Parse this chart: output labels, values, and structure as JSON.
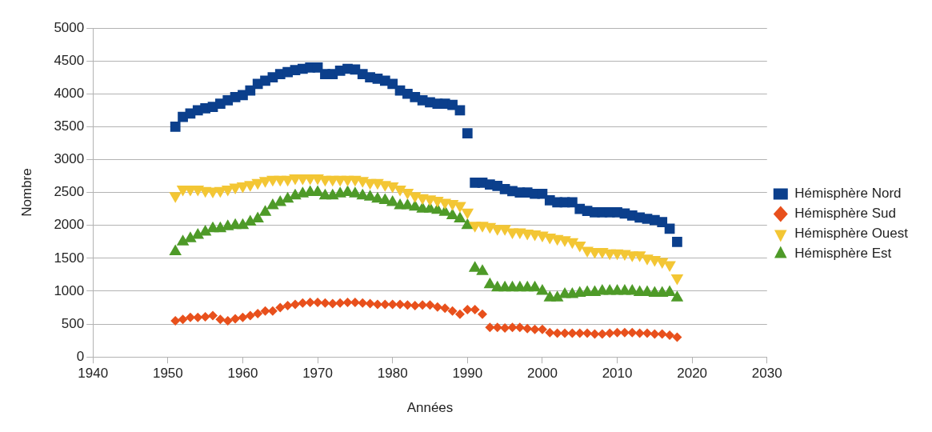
{
  "chart_data": {
    "type": "scatter",
    "xlabel": "Années",
    "ylabel": "Nombre",
    "x": [
      1951,
      1952,
      1953,
      1954,
      1955,
      1956,
      1957,
      1958,
      1959,
      1960,
      1961,
      1962,
      1963,
      1964,
      1965,
      1966,
      1967,
      1968,
      1969,
      1970,
      1971,
      1972,
      1973,
      1974,
      1975,
      1976,
      1977,
      1978,
      1979,
      1980,
      1981,
      1982,
      1983,
      1984,
      1985,
      1986,
      1987,
      1988,
      1989,
      1990,
      1991,
      1992,
      1993,
      1994,
      1995,
      1996,
      1997,
      1998,
      1999,
      2000,
      2001,
      2002,
      2003,
      2004,
      2005,
      2006,
      2007,
      2008,
      2009,
      2010,
      2011,
      2012,
      2013,
      2014,
      2015,
      2016,
      2017,
      2018
    ],
    "series": [
      {
        "name": "Hémisphère Nord",
        "color": "#0b3f8c",
        "marker": "square",
        "values": [
          3500,
          3650,
          3700,
          3750,
          3780,
          3800,
          3850,
          3900,
          3950,
          3980,
          4050,
          4150,
          4200,
          4250,
          4300,
          4330,
          4360,
          4380,
          4400,
          4400,
          4300,
          4300,
          4350,
          4380,
          4370,
          4300,
          4250,
          4230,
          4200,
          4150,
          4050,
          4000,
          3950,
          3900,
          3870,
          3850,
          3850,
          3830,
          3750,
          3400,
          2650,
          2650,
          2620,
          2600,
          2550,
          2520,
          2500,
          2500,
          2480,
          2480,
          2380,
          2350,
          2350,
          2350,
          2250,
          2220,
          2200,
          2200,
          2200,
          2200,
          2180,
          2150,
          2120,
          2100,
          2080,
          2050,
          1950,
          1750
        ]
      },
      {
        "name": "Hémisphère Sud",
        "color": "#e8501c",
        "marker": "diamond",
        "values": [
          550,
          570,
          600,
          600,
          610,
          630,
          570,
          550,
          580,
          600,
          630,
          660,
          700,
          700,
          750,
          780,
          800,
          820,
          830,
          830,
          820,
          810,
          820,
          830,
          830,
          820,
          810,
          800,
          800,
          800,
          800,
          790,
          780,
          790,
          790,
          760,
          740,
          700,
          650,
          720,
          720,
          650,
          450,
          450,
          440,
          450,
          450,
          430,
          420,
          420,
          370,
          360,
          360,
          360,
          360,
          360,
          350,
          350,
          360,
          370,
          370,
          370,
          360,
          360,
          350,
          350,
          330,
          300
        ]
      },
      {
        "name": "Hémisphère Ouest",
        "color": "#f3c634",
        "marker": "triangle-down",
        "values": [
          2450,
          2550,
          2550,
          2550,
          2530,
          2520,
          2530,
          2550,
          2580,
          2600,
          2620,
          2650,
          2680,
          2700,
          2700,
          2700,
          2720,
          2720,
          2720,
          2720,
          2700,
          2700,
          2700,
          2700,
          2700,
          2680,
          2650,
          2650,
          2620,
          2600,
          2550,
          2500,
          2450,
          2420,
          2400,
          2380,
          2350,
          2330,
          2300,
          2200,
          2000,
          2000,
          1980,
          1950,
          1950,
          1900,
          1900,
          1880,
          1870,
          1850,
          1820,
          1800,
          1780,
          1750,
          1700,
          1620,
          1600,
          1600,
          1580,
          1580,
          1570,
          1550,
          1550,
          1500,
          1480,
          1450,
          1400,
          1200
        ]
      },
      {
        "name": "Hémisphère Est",
        "color": "#4e9a28",
        "marker": "triangle",
        "values": [
          1600,
          1750,
          1800,
          1850,
          1900,
          1950,
          1950,
          1980,
          2000,
          2000,
          2050,
          2100,
          2200,
          2300,
          2350,
          2400,
          2450,
          2480,
          2500,
          2500,
          2450,
          2450,
          2480,
          2500,
          2480,
          2450,
          2430,
          2400,
          2380,
          2350,
          2300,
          2300,
          2280,
          2250,
          2250,
          2230,
          2200,
          2150,
          2100,
          2000,
          1350,
          1300,
          1100,
          1050,
          1050,
          1050,
          1050,
          1050,
          1050,
          1000,
          900,
          900,
          950,
          950,
          970,
          980,
          980,
          1000,
          1000,
          1000,
          1000,
          1000,
          980,
          980,
          970,
          970,
          980,
          900
        ]
      }
    ],
    "xlim": [
      1940,
      2030
    ],
    "xticks": [
      1940,
      1950,
      1960,
      1970,
      1980,
      1990,
      2000,
      2010,
      2020,
      2030
    ],
    "ylim": [
      0,
      5000
    ],
    "yticks": [
      0,
      500,
      1000,
      1500,
      2000,
      2500,
      3000,
      3500,
      4000,
      4500,
      5000
    ],
    "grid": "y",
    "legend": "right"
  }
}
